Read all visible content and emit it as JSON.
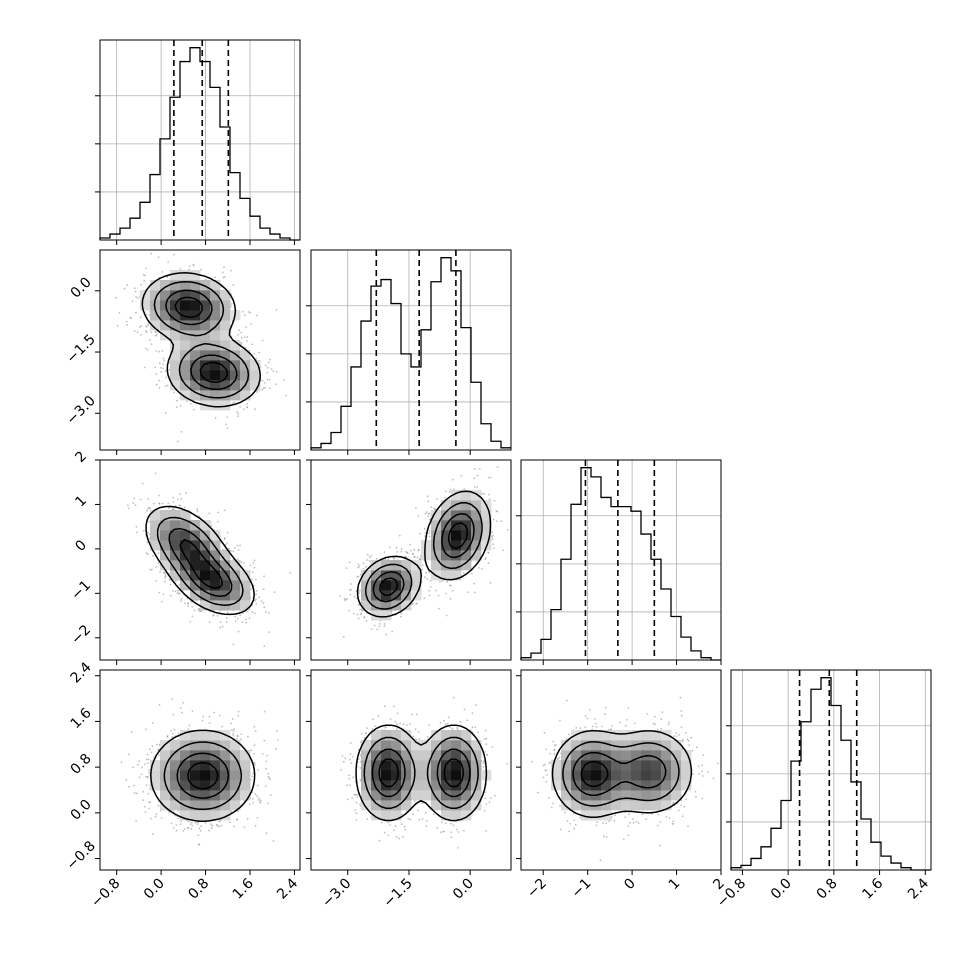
{
  "chart_data": {
    "type": "corner",
    "parameters": 4,
    "style": {
      "axis_color": "#000000",
      "grid_color": "#b0b0b0",
      "histogram_color": "#000000",
      "density_color": "#000000"
    },
    "ticks": {
      "p0": {
        "values": [
          -0.8,
          0.0,
          0.8,
          1.6,
          2.4
        ],
        "labels": [
          "−0.8",
          "0.0",
          "0.8",
          "1.6",
          "2.4"
        ],
        "range": [
          -1.1,
          2.5
        ]
      },
      "p1": {
        "values": [
          -3.0,
          -1.5,
          0.0
        ],
        "labels": [
          "−3.0",
          "−1.5",
          "0.0"
        ],
        "range": [
          -3.9,
          1.0
        ]
      },
      "p2": {
        "values": [
          -2,
          -1,
          0,
          1,
          2
        ],
        "labels": [
          "−2",
          "−1",
          "0",
          "1",
          "2"
        ],
        "range": [
          -2.5,
          2.0
        ]
      },
      "p3": {
        "values": [
          -0.8,
          0.0,
          0.8,
          1.6,
          2.4
        ],
        "labels": [
          "−0.8",
          "0.0",
          "0.8",
          "1.6",
          "2.4"
        ],
        "range": [
          -1.0,
          2.5
        ]
      }
    },
    "histograms": [
      {
        "param": "p0",
        "bin_edges": [
          -1.1,
          -0.92,
          -0.74,
          -0.56,
          -0.38,
          -0.2,
          -0.02,
          0.16,
          0.34,
          0.52,
          0.7,
          0.88,
          1.06,
          1.24,
          1.42,
          1.6,
          1.78,
          1.96,
          2.14,
          2.32,
          2.5
        ],
        "counts": [
          1,
          3,
          6,
          11,
          19,
          33,
          51,
          72,
          90,
          97,
          90,
          77,
          57,
          34,
          21,
          12,
          6,
          3,
          1,
          0
        ],
        "quantiles": [
          0.23,
          0.74,
          1.21
        ]
      },
      {
        "param": "p1",
        "bin_edges": [
          -3.9,
          -3.655,
          -3.41,
          -3.165,
          -2.92,
          -2.675,
          -2.43,
          -2.185,
          -1.94,
          -1.695,
          -1.45,
          -1.205,
          -0.96,
          -0.715,
          -0.47,
          -0.225,
          0.02,
          0.265,
          0.51,
          0.755,
          1.0
        ],
        "counts": [
          1,
          3,
          8,
          20,
          38,
          59,
          75,
          78,
          67,
          44,
          38,
          55,
          77,
          88,
          82,
          56,
          31,
          12,
          4,
          1
        ],
        "quantiles": [
          -2.3,
          -1.25,
          -0.35
        ]
      },
      {
        "param": "p2",
        "bin_edges": [
          -2.5,
          -2.275,
          -2.05,
          -1.825,
          -1.6,
          -1.375,
          -1.15,
          -0.925,
          -0.7,
          -0.475,
          -0.25,
          -0.025,
          0.2,
          0.425,
          0.65,
          0.875,
          1.1,
          1.325,
          1.55,
          1.775,
          2.0
        ],
        "counts": [
          1,
          3,
          9,
          22,
          44,
          68,
          84,
          80,
          71,
          67,
          67,
          65,
          55,
          44,
          31,
          19,
          10,
          4,
          1,
          0
        ],
        "quantiles": [
          -1.05,
          -0.32,
          0.5
        ]
      },
      {
        "param": "p3",
        "bin_edges": [
          -1.0,
          -0.825,
          -0.65,
          -0.475,
          -0.3,
          -0.125,
          0.05,
          0.225,
          0.4,
          0.575,
          0.75,
          0.925,
          1.1,
          1.275,
          1.45,
          1.625,
          1.8,
          1.975,
          2.15,
          2.325,
          2.5
        ],
        "counts": [
          1,
          2,
          5,
          10,
          18,
          30,
          47,
          64,
          78,
          83,
          71,
          56,
          38,
          22,
          12,
          6,
          3,
          1,
          0,
          0
        ],
        "quantiles": [
          0.2,
          0.72,
          1.2
        ]
      }
    ],
    "scatter_panels": [
      {
        "x": "p0",
        "y": "p1",
        "components": [
          {
            "mu": [
              0.5,
              -0.4
            ],
            "sigma": [
              0.42,
              0.42
            ],
            "rho": -0.1,
            "w": 0.5
          },
          {
            "mu": [
              0.95,
              -2.0
            ],
            "sigma": [
              0.42,
              0.42
            ],
            "rho": -0.1,
            "w": 0.5
          }
        ],
        "levels": [
          0.14,
          0.34,
          0.62,
          0.85
        ]
      },
      {
        "x": "p0",
        "y": "p2",
        "components": [
          {
            "mu": [
              0.45,
              0.1
            ],
            "sigma": [
              0.38,
              0.45
            ],
            "rho": -0.45,
            "w": 0.5
          },
          {
            "mu": [
              0.95,
              -0.75
            ],
            "sigma": [
              0.38,
              0.38
            ],
            "rho": -0.4,
            "w": 0.5
          }
        ],
        "levels": [
          0.14,
          0.34,
          0.62,
          0.85
        ]
      },
      {
        "x": "p1",
        "y": "p2",
        "components": [
          {
            "mu": [
              -2.0,
              -0.85
            ],
            "sigma": [
              0.38,
              0.34
            ],
            "rho": 0.2,
            "w": 0.5
          },
          {
            "mu": [
              -0.3,
              0.3
            ],
            "sigma": [
              0.4,
              0.5
            ],
            "rho": 0.25,
            "w": 0.5
          }
        ],
        "levels": [
          0.14,
          0.34,
          0.62,
          0.85
        ]
      },
      {
        "x": "p0",
        "y": "p3",
        "components": [
          {
            "mu": [
              0.75,
              0.65
            ],
            "sigma": [
              0.47,
              0.4
            ],
            "rho": 0.0,
            "w": 1.0
          }
        ],
        "levels": [
          0.14,
          0.34,
          0.62,
          0.85
        ]
      },
      {
        "x": "p1",
        "y": "p3",
        "components": [
          {
            "mu": [
              -2.0,
              0.7
            ],
            "sigma": [
              0.4,
              0.42
            ],
            "rho": 0.0,
            "w": 0.5
          },
          {
            "mu": [
              -0.4,
              0.7
            ],
            "sigma": [
              0.4,
              0.42
            ],
            "rho": 0.0,
            "w": 0.5
          }
        ],
        "levels": [
          0.14,
          0.34,
          0.62,
          0.85
        ]
      },
      {
        "x": "p2",
        "y": "p3",
        "components": [
          {
            "mu": [
              -0.9,
              0.68
            ],
            "sigma": [
              0.45,
              0.38
            ],
            "rho": 0.0,
            "w": 0.55
          },
          {
            "mu": [
              0.4,
              0.72
            ],
            "sigma": [
              0.5,
              0.38
            ],
            "rho": 0.0,
            "w": 0.45
          }
        ],
        "levels": [
          0.14,
          0.34,
          0.62,
          0.85
        ]
      }
    ]
  }
}
